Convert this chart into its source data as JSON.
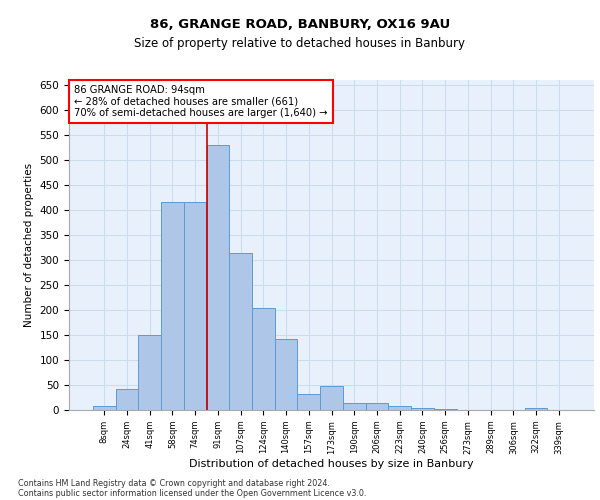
{
  "title1": "86, GRANGE ROAD, BANBURY, OX16 9AU",
  "title2": "Size of property relative to detached houses in Banbury",
  "xlabel": "Distribution of detached houses by size in Banbury",
  "ylabel": "Number of detached properties",
  "footnote1": "Contains HM Land Registry data © Crown copyright and database right 2024.",
  "footnote2": "Contains public sector information licensed under the Open Government Licence v3.0.",
  "categories": [
    "8sqm",
    "24sqm",
    "41sqm",
    "58sqm",
    "74sqm",
    "91sqm",
    "107sqm",
    "124sqm",
    "140sqm",
    "157sqm",
    "173sqm",
    "190sqm",
    "206sqm",
    "223sqm",
    "240sqm",
    "256sqm",
    "273sqm",
    "289sqm",
    "306sqm",
    "322sqm",
    "339sqm"
  ],
  "values": [
    8,
    43,
    150,
    416,
    416,
    530,
    315,
    205,
    142,
    32,
    48,
    15,
    15,
    8,
    5,
    3,
    1,
    1,
    0,
    5,
    0
  ],
  "bar_color": "#aec6e8",
  "bar_edge_color": "#5b9bd5",
  "grid_color": "#c8ddf0",
  "background_color": "#e8f1fb",
  "vline_x_index": 5,
  "vline_color": "#cc0000",
  "annotation_title": "86 GRANGE ROAD: 94sqm",
  "annotation_line1": "← 28% of detached houses are smaller (661)",
  "annotation_line2": "70% of semi-detached houses are larger (1,640) →",
  "annotation_box_color": "red",
  "ylim": [
    0,
    660
  ],
  "yticks": [
    0,
    50,
    100,
    150,
    200,
    250,
    300,
    350,
    400,
    450,
    500,
    550,
    600,
    650
  ]
}
